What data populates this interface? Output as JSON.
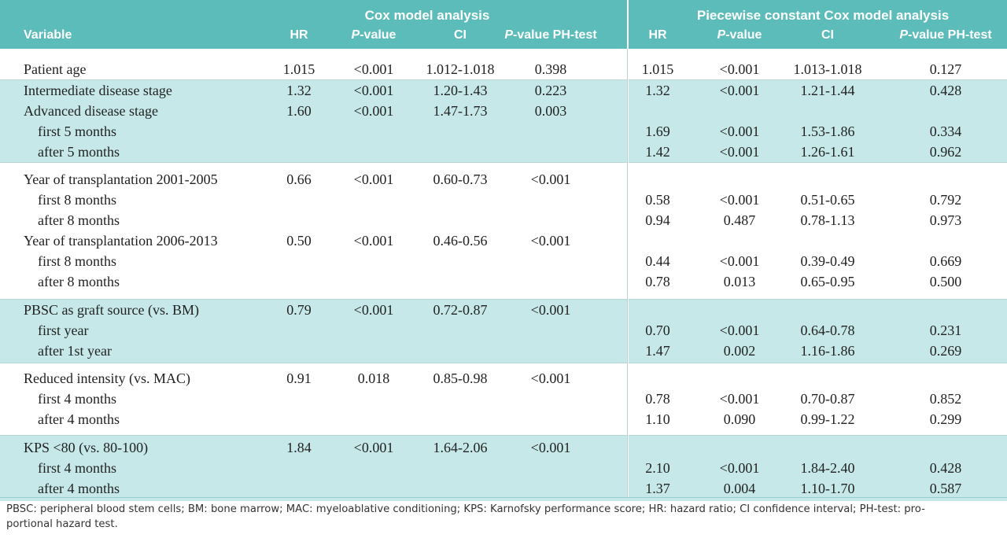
{
  "header": {
    "group_headers": [
      "Cox model analysis",
      "Piecewise constant Cox model analysis"
    ],
    "columns": [
      "Variable",
      "HR",
      "P-value",
      "CI",
      "P-value PH-test",
      "HR",
      "P-value",
      "CI",
      "P-value PH-test"
    ]
  },
  "table": {
    "groups": [
      [
        [
          "Patient age",
          "1.015",
          "<0.001",
          "1.012-1.018",
          "0.398",
          "1.015",
          "<0.001",
          "1.013-1.018",
          "0.127"
        ]
      ],
      [
        [
          "Intermediate disease stage",
          "1.32",
          "<0.001",
          "1.20-1.43",
          "0.223",
          "1.32",
          "<0.001",
          "1.21-1.44",
          "0.428"
        ],
        [
          "Advanced disease stage",
          "1.60",
          "<0.001",
          "1.47-1.73",
          "0.003",
          null,
          null,
          null,
          null
        ],
        [
          "first 5 months",
          null,
          null,
          null,
          null,
          "1.69",
          "<0.001",
          "1.53-1.86",
          "0.334"
        ],
        [
          "after 5 months",
          null,
          null,
          null,
          null,
          "1.42",
          "<0.001",
          "1.26-1.61",
          "0.962"
        ]
      ],
      [
        [
          "Year of transplantation 2001-2005",
          "0.66",
          "<0.001",
          "0.60-0.73",
          "<0.001",
          null,
          null,
          null,
          null
        ],
        [
          "first 8 months",
          null,
          null,
          null,
          null,
          "0.58",
          "<0.001",
          "0.51-0.65",
          "0.792"
        ],
        [
          "after 8 months",
          null,
          null,
          null,
          null,
          "0.94",
          "0.487",
          "0.78-1.13",
          "0.973"
        ],
        [
          "Year of transplantation  2006-2013",
          "0.50",
          "<0.001",
          "0.46-0.56",
          "<0.001",
          null,
          null,
          null,
          null
        ],
        [
          "first 8 months",
          null,
          null,
          null,
          null,
          "0.44",
          "<0.001",
          "0.39-0.49",
          "0.669"
        ],
        [
          "after 8 months",
          null,
          null,
          null,
          null,
          "0.78",
          "0.013",
          "0.65-0.95",
          "0.500"
        ]
      ],
      [
        [
          "PBSC as graft source (vs. BM)",
          "0.79",
          "<0.001",
          "0.72-0.87",
          "<0.001",
          null,
          null,
          null,
          null
        ],
        [
          "first year",
          null,
          null,
          null,
          null,
          "0.70",
          "<0.001",
          "0.64-0.78",
          "0.231"
        ],
        [
          "after 1st year",
          null,
          null,
          null,
          null,
          "1.47",
          "0.002",
          "1.16-1.86",
          "0.269"
        ]
      ],
      [
        [
          "Reduced intensity (vs. MAC)",
          "0.91",
          "0.018",
          "0.85-0.98",
          "<0.001",
          null,
          null,
          null,
          null
        ],
        [
          "first 4 months",
          null,
          null,
          null,
          null,
          "0.78",
          "<0.001",
          "0.70-0.87",
          "0.852"
        ],
        [
          "after 4 months",
          null,
          null,
          null,
          null,
          "1.10",
          "0.090",
          "0.99-1.22",
          "0.299"
        ]
      ],
      [
        [
          "KPS <80 (vs. 80-100)",
          "1.84",
          "<0.001",
          "1.64-2.06",
          "<0.001",
          null,
          null,
          null,
          null
        ],
        [
          "first 4 months",
          null,
          null,
          null,
          null,
          "2.10",
          "<0.001",
          "1.84-2.40",
          "0.428"
        ],
        [
          "after 4 months",
          null,
          null,
          null,
          null,
          "1.37",
          "0.004",
          "1.10-1.70",
          "0.587"
        ]
      ]
    ]
  },
  "footnote": [
    "PBSC: peripheral blood stem cells; BM: bone marrow; MAC: myeloablative conditioning; KPS: Karnofsky performance score; HR: hazard ratio; CI confidence interval; PH-test: pro-",
    "portional hazard test."
  ]
}
